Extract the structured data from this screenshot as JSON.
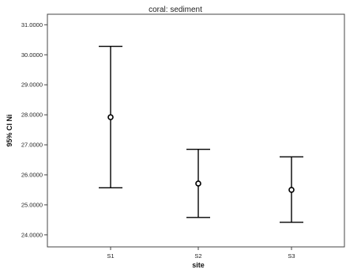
{
  "chart_data": {
    "type": "errorbar",
    "title": "coral: sediment",
    "xlabel": "site",
    "ylabel": "95% CI Ni",
    "categories": [
      "S1",
      "S2",
      "S3"
    ],
    "series": [
      {
        "mean": [
          27.92,
          25.71,
          25.5
        ],
        "lower": [
          25.57,
          24.58,
          24.42
        ],
        "upper": [
          30.28,
          26.85,
          26.6
        ]
      }
    ],
    "yticks": [
      "24.0000",
      "25.0000",
      "26.0000",
      "27.0000",
      "28.0000",
      "29.0000",
      "30.0000",
      "31.0000"
    ],
    "ylim": [
      23.6,
      31.35
    ],
    "grid": false,
    "line_color": "#000000"
  }
}
